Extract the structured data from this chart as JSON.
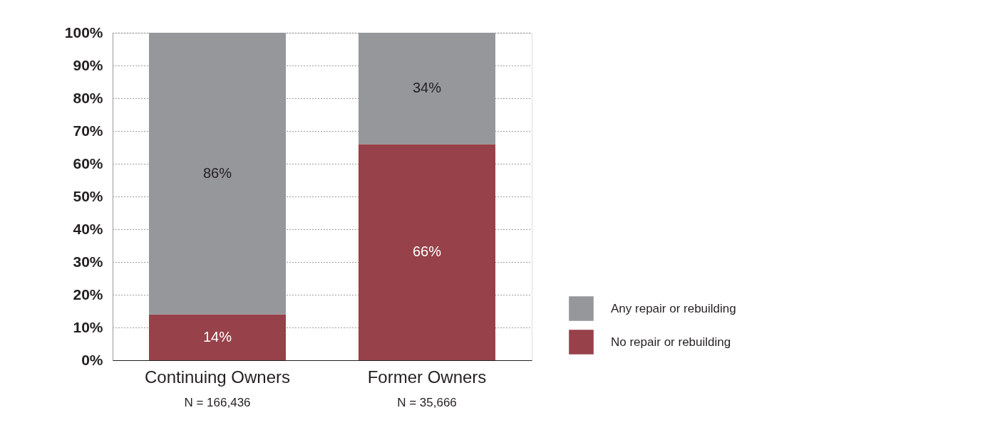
{
  "chart_data": {
    "type": "bar",
    "stacked": true,
    "categories": [
      "Continuing Owners",
      "Former Owners"
    ],
    "series": [
      {
        "name": "No repair or rebuilding",
        "color": "#97414a",
        "values": [
          14,
          66
        ],
        "value_labels": [
          "14%",
          "66%"
        ]
      },
      {
        "name": "Any repair or rebuilding",
        "color": "#96979b",
        "values": [
          86,
          34
        ],
        "value_labels": [
          "86%",
          "34%"
        ]
      }
    ],
    "ylim": [
      0,
      100
    ],
    "yticks": [
      {
        "value": 0,
        "label": "0%"
      },
      {
        "value": 10,
        "label": "10%"
      },
      {
        "value": 20,
        "label": "20%"
      },
      {
        "value": 30,
        "label": "30%"
      },
      {
        "value": 40,
        "label": "40%"
      },
      {
        "value": 50,
        "label": "50%"
      },
      {
        "value": 60,
        "label": "60%"
      },
      {
        "value": 70,
        "label": "70%"
      },
      {
        "value": 80,
        "label": "80%"
      },
      {
        "value": 90,
        "label": "90%"
      },
      {
        "value": 100,
        "label": "100%"
      }
    ],
    "grid": "y",
    "legend": "right",
    "annotations": [
      "N = 166,436",
      "N = 35,666"
    ]
  }
}
